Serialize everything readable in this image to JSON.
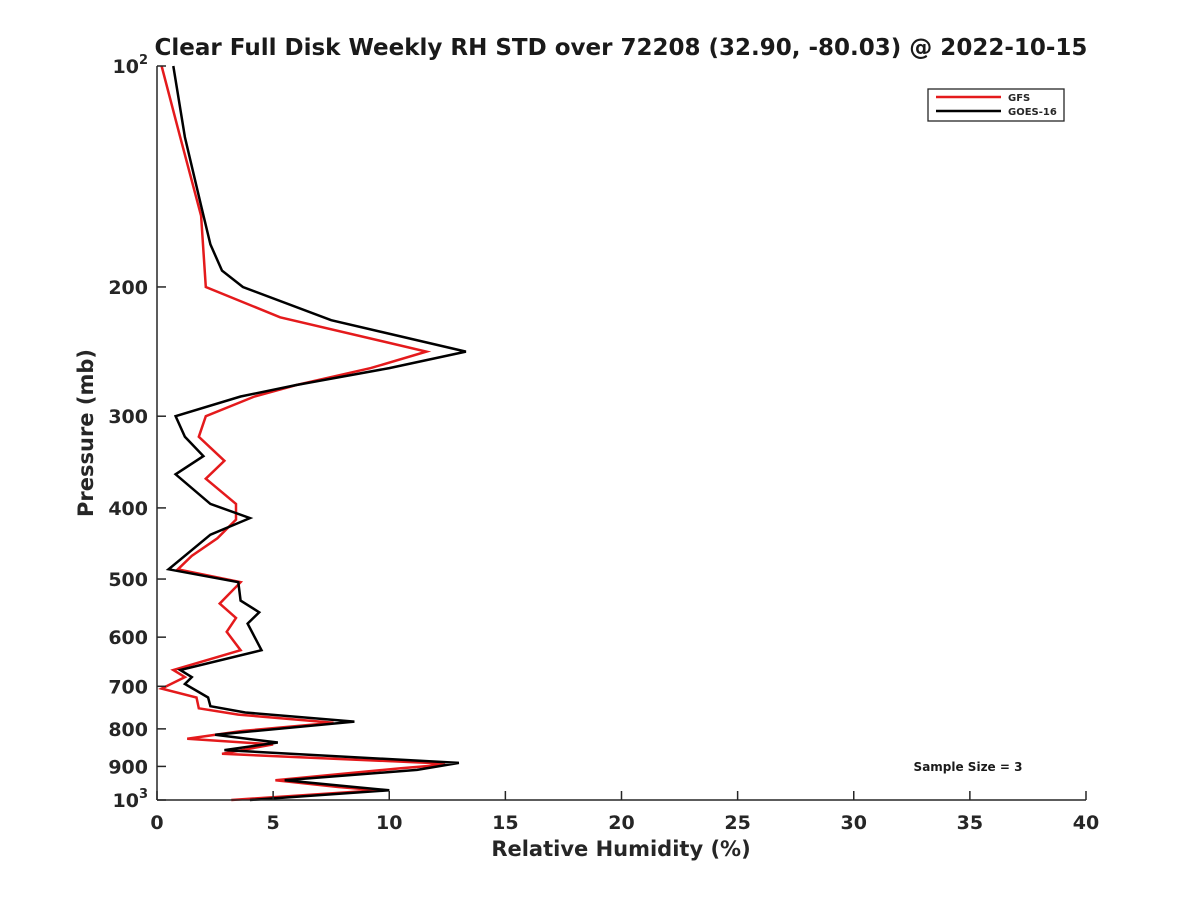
{
  "chart_data": {
    "type": "line",
    "title": "Clear Full Disk Weekly RH STD over 72208 (32.90, -80.03) @ 2022-10-15",
    "xlabel": "Relative Humidity (%)",
    "ylabel": "Pressure (mb)",
    "xlim": [
      0,
      40
    ],
    "ylim": [
      100,
      1000
    ],
    "y_scale": "log",
    "y_reversed": true,
    "xticks": [
      0,
      5,
      10,
      15,
      20,
      25,
      30,
      35,
      40
    ],
    "xtick_labels": [
      "0",
      "5",
      "10",
      "15",
      "20",
      "25",
      "30",
      "35",
      "40"
    ],
    "yticks": [
      100,
      200,
      300,
      400,
      500,
      600,
      700,
      800,
      900,
      1000
    ],
    "ytick_labels": [
      {
        "base": "10",
        "sup": "2"
      },
      {
        "base": "200",
        "sup": ""
      },
      {
        "base": "300",
        "sup": ""
      },
      {
        "base": "400",
        "sup": ""
      },
      {
        "base": "500",
        "sup": ""
      },
      {
        "base": "600",
        "sup": ""
      },
      {
        "base": "700",
        "sup": ""
      },
      {
        "base": "800",
        "sup": ""
      },
      {
        "base": "900",
        "sup": ""
      },
      {
        "base": "10",
        "sup": "3"
      }
    ],
    "legend_position": "top-right",
    "grid": false,
    "annotation": "Sample Size = 3",
    "series": [
      {
        "name": "GFS",
        "color": "#e41a1c",
        "points": [
          [
            0.2,
            100
          ],
          [
            1.0,
            125
          ],
          [
            1.9,
            160
          ],
          [
            2.1,
            200
          ],
          [
            5.3,
            220
          ],
          [
            11.6,
            245
          ],
          [
            9.2,
            258
          ],
          [
            6.0,
            272
          ],
          [
            4.2,
            282
          ],
          [
            2.1,
            300
          ],
          [
            1.8,
            320
          ],
          [
            2.9,
            345
          ],
          [
            2.1,
            365
          ],
          [
            3.4,
            395
          ],
          [
            3.4,
            415
          ],
          [
            2.6,
            440
          ],
          [
            1.5,
            465
          ],
          [
            0.9,
            485
          ],
          [
            3.6,
            505
          ],
          [
            2.7,
            540
          ],
          [
            3.4,
            565
          ],
          [
            3.0,
            590
          ],
          [
            3.6,
            625
          ],
          [
            0.7,
            665
          ],
          [
            1.2,
            680
          ],
          [
            0.2,
            705
          ],
          [
            1.7,
            725
          ],
          [
            1.8,
            750
          ],
          [
            3.5,
            765
          ],
          [
            7.6,
            785
          ],
          [
            3.7,
            805
          ],
          [
            1.3,
            825
          ],
          [
            5.0,
            840
          ],
          [
            2.8,
            865
          ],
          [
            11.7,
            890
          ],
          [
            12.4,
            895
          ],
          [
            10.5,
            905
          ],
          [
            5.1,
            940
          ],
          [
            7.8,
            960
          ],
          [
            9.5,
            970
          ],
          [
            3.2,
            1000
          ]
        ]
      },
      {
        "name": "GOES-16",
        "color": "#000000",
        "points": [
          [
            0.7,
            100
          ],
          [
            1.2,
            125
          ],
          [
            1.9,
            155
          ],
          [
            2.3,
            175
          ],
          [
            2.8,
            190
          ],
          [
            3.7,
            200
          ],
          [
            7.5,
            222
          ],
          [
            13.3,
            245
          ],
          [
            10.0,
            258
          ],
          [
            6.0,
            272
          ],
          [
            3.6,
            282
          ],
          [
            0.8,
            300
          ],
          [
            1.2,
            320
          ],
          [
            2.0,
            340
          ],
          [
            0.8,
            360
          ],
          [
            2.3,
            395
          ],
          [
            4.0,
            413
          ],
          [
            2.3,
            435
          ],
          [
            0.5,
            485
          ],
          [
            3.5,
            505
          ],
          [
            3.6,
            535
          ],
          [
            4.4,
            555
          ],
          [
            3.9,
            575
          ],
          [
            4.5,
            625
          ],
          [
            1.0,
            665
          ],
          [
            1.5,
            680
          ],
          [
            1.2,
            695
          ],
          [
            2.2,
            725
          ],
          [
            2.3,
            745
          ],
          [
            3.8,
            760
          ],
          [
            8.5,
            782
          ],
          [
            2.5,
            815
          ],
          [
            5.2,
            835
          ],
          [
            2.9,
            855
          ],
          [
            13.0,
            890
          ],
          [
            11.2,
            910
          ],
          [
            5.5,
            940
          ],
          [
            8.5,
            960
          ],
          [
            10.0,
            970
          ],
          [
            4.0,
            1000
          ]
        ]
      }
    ]
  }
}
